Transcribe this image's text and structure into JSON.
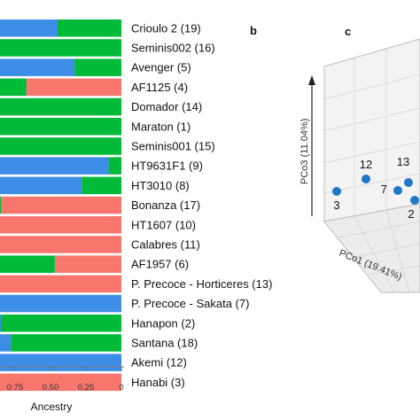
{
  "panels": {
    "b": "b",
    "c": "c"
  },
  "chart_data": [
    {
      "type": "bar",
      "subtype": "stacked-horizontal",
      "xlabel": "Ancestry",
      "x_tick_labels": [
        "0.75",
        "0.50",
        "0.25",
        "0"
      ],
      "x_ticks": [
        0.75,
        0.5,
        0.25,
        0
      ],
      "xlim": [
        1,
        0
      ],
      "categories": [
        "Crioulo 2 (19)",
        "Seminis002 (16)",
        "Avenger (5)",
        "AF1125 (4)",
        "Domador (14)",
        "Maraton (1)",
        "Seminis001 (15)",
        "HT9631F1 (9)",
        "HT3010 (8)",
        "Bonanza (17)",
        "HT1607 (10)",
        "Calabres (11)",
        "AF1957 (6)",
        "P. Precoce - Horticeres (13)",
        "P. Precoce - Sakata (7)",
        "Hanapon (2)",
        "Santana (18)",
        "Akemi (12)",
        "Hanabi (3)"
      ],
      "series": [
        {
          "color": "#f8766d",
          "values": [
            0,
            0,
            0,
            0.67,
            0,
            0,
            0,
            0,
            0,
            0.85,
            1.0,
            1.0,
            0.47,
            0.93,
            0,
            0,
            0,
            0,
            0.98
          ]
        },
        {
          "color": "#00ba38",
          "values": [
            0.45,
            1.0,
            0.33,
            0.23,
            1.0,
            1.0,
            1.0,
            0.09,
            0.28,
            0.15,
            0,
            0,
            0.53,
            0.02,
            0,
            0.85,
            0.78,
            0,
            0
          ]
        },
        {
          "color": "#3c8de6",
          "values": [
            0.55,
            0,
            0.67,
            0.1,
            0,
            0,
            0,
            0.91,
            0.72,
            0,
            0,
            0,
            0,
            0.05,
            1.0,
            0.15,
            0.22,
            1.0,
            0.02
          ]
        }
      ]
    },
    {
      "type": "scatter",
      "subtype": "3d-pcoa",
      "axis_labels": [
        "PCo1 (19.41%)",
        "PCo3 (11.04%)"
      ],
      "point_color": "#1f77c8",
      "points": [
        {
          "label": "12"
        },
        {
          "label": "13"
        },
        {
          "label": "7"
        },
        {
          "label": "3"
        },
        {
          "label": "2"
        }
      ]
    }
  ]
}
